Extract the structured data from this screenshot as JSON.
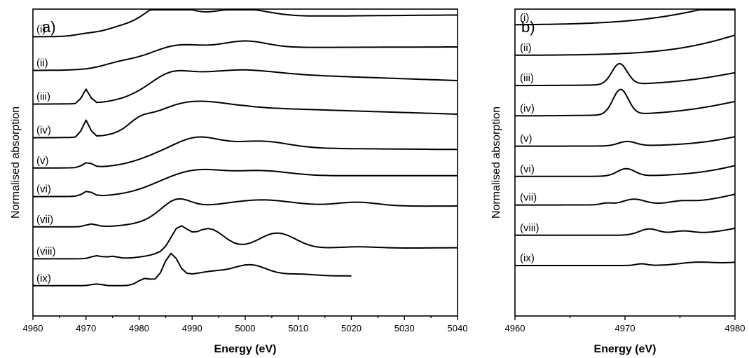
{
  "chart_data": [
    {
      "panel_label": "a)",
      "type": "line",
      "xlabel": "Energy (eV)",
      "ylabel": "Normalised absorption",
      "xlim": [
        4960,
        5040
      ],
      "xticks": [
        4960,
        4970,
        4980,
        4990,
        5000,
        5010,
        5020,
        5030,
        5040
      ],
      "legend": "inline labels at left",
      "series": [
        {
          "name": "(i)",
          "offset": 8.3,
          "peaks": [
            [
              4970,
              0.05,
              2
            ],
            [
              4976,
              0.12,
              3
            ],
            [
              4985,
              0.52,
              3.5
            ],
            [
              4999,
              0.24,
              5
            ]
          ],
          "edge": [
            4979,
            0.6,
            3.5
          ],
          "tail": 0.05,
          "xmax": 5040
        },
        {
          "name": "(ii)",
          "offset": 7.3,
          "peaks": [
            [
              4976,
              0.1,
              3
            ],
            [
              4987,
              0.15,
              4
            ],
            [
              5000,
              0.2,
              4
            ]
          ],
          "edge": [
            4980,
            0.68,
            3.5
          ],
          "tail": 0.02,
          "xmax": 5040
        },
        {
          "name": "(iii)",
          "offset": 6.3,
          "peaks": [
            [
              4970,
              0.42,
              0.7
            ],
            [
              4986,
              0.18,
              3
            ],
            [
              5000,
              0.1,
              6
            ]
          ],
          "edge": [
            4981,
            0.92,
            3
          ],
          "tail": -0.22,
          "xmax": 5040
        },
        {
          "name": "(iv)",
          "offset": 5.3,
          "peaks": [
            [
              4970,
              0.5,
              0.7
            ],
            [
              4980,
              0.2,
              2
            ],
            [
              4990,
              0.22,
              6
            ]
          ],
          "edge": [
            4981,
            0.9,
            3
          ],
          "tail": -0.2,
          "xmax": 5040
        },
        {
          "name": "(v)",
          "offset": 4.4,
          "peaks": [
            [
              4970.3,
              0.15,
              0.9
            ],
            [
              4991,
              0.33,
              4
            ],
            [
              5003,
              0.2,
              5
            ]
          ],
          "edge": [
            4981,
            0.6,
            3
          ],
          "tail": -0.05,
          "xmax": 5040
        },
        {
          "name": "(vi)",
          "offset": 3.55,
          "peaks": [
            [
              4970.3,
              0.15,
              0.9
            ],
            [
              4991,
              0.2,
              4.5
            ],
            [
              5003,
              0.15,
              5
            ]
          ],
          "edge": [
            4982,
            0.62,
            3
          ],
          "tail": 0.0,
          "xmax": 5040
        },
        {
          "name": "(vii)",
          "offset": 2.65,
          "peaks": [
            [
              4971,
              0.08,
              1
            ],
            [
              4987,
              0.32,
              2.5
            ],
            [
              5003,
              0.2,
              6
            ],
            [
              5021,
              0.12,
              4
            ]
          ],
          "edge": [
            4983,
            0.6,
            2.5
          ],
          "tail": 0.02,
          "xmax": 5040
        },
        {
          "name": "(viii)",
          "offset": 1.7,
          "peaks": [
            [
              4972,
              0.09,
              1
            ],
            [
              4975,
              0.07,
              1
            ],
            [
              4987.5,
              0.6,
              1.5
            ],
            [
              4993,
              0.62,
              3
            ],
            [
              5006,
              0.48,
              3.5
            ],
            [
              5021,
              0.05,
              4
            ]
          ],
          "edge": [
            4983,
            0.28,
            2
          ],
          "tail": 0.05,
          "xmax": 5040
        },
        {
          "name": "(ix)",
          "offset": 0.9,
          "peaks": [
            [
              4972,
              0.05,
              1
            ],
            [
              4981,
              0.18,
              1.2
            ],
            [
              4986,
              0.72,
              1.3
            ],
            [
              4994,
              0.12,
              3
            ],
            [
              5001,
              0.32,
              3
            ],
            [
              5010,
              0.05,
              3
            ]
          ],
          "edge": [
            4984,
            0.3,
            1.5
          ],
          "tail": -0.02,
          "xmax": 5020
        }
      ]
    },
    {
      "panel_label": "b)",
      "type": "line",
      "xlabel": "Energy (eV)",
      "ylabel": "Normalised absorption",
      "xlim": [
        4960,
        4980
      ],
      "xticks": [
        4960,
        4970,
        4980
      ],
      "legend": "inline labels at left",
      "series": [
        {
          "name": "(i)",
          "offset": 8.65,
          "peaks": [],
          "edge": [
            4979,
            1.25,
            4
          ],
          "tail": 0,
          "xmax": 4980
        },
        {
          "name": "(ii)",
          "offset": 7.75,
          "peaks": [],
          "edge": [
            4981,
            1.4,
            3.5
          ],
          "tail": 0,
          "xmax": 4980
        },
        {
          "name": "(iii)",
          "offset": 6.85,
          "peaks": [
            [
              4969.5,
              0.62,
              0.7
            ]
          ],
          "edge": [
            4981,
            0.9,
            3.5
          ],
          "tail": 0,
          "xmax": 4980
        },
        {
          "name": "(iv)",
          "offset": 5.95,
          "peaks": [
            [
              4969.6,
              0.75,
              0.7
            ]
          ],
          "edge": [
            4981,
            1.0,
            3.5
          ],
          "tail": 0,
          "xmax": 4980
        },
        {
          "name": "(v)",
          "offset": 5.05,
          "peaks": [
            [
              4970.2,
              0.13,
              0.8
            ]
          ],
          "edge": [
            4981,
            0.7,
            2.5
          ],
          "tail": 0,
          "xmax": 4980
        },
        {
          "name": "(vi)",
          "offset": 4.15,
          "peaks": [
            [
              4970.1,
              0.22,
              0.8
            ]
          ],
          "edge": [
            4981,
            0.8,
            2.5
          ],
          "tail": 0,
          "xmax": 4980
        },
        {
          "name": "(vii)",
          "offset": 3.3,
          "peaks": [
            [
              4968.3,
              0.05,
              0.5
            ],
            [
              4970.8,
              0.16,
              1
            ],
            [
              4975,
              0.06,
              1
            ]
          ],
          "edge": [
            4981,
            0.8,
            2.5
          ],
          "tail": 0,
          "xmax": 4980
        },
        {
          "name": "(viii)",
          "offset": 2.4,
          "peaks": [
            [
              4972.2,
              0.18,
              0.9
            ],
            [
              4975.2,
              0.1,
              1
            ]
          ],
          "edge": [
            4981,
            0.55,
            2
          ],
          "tail": 0,
          "xmax": 4980
        },
        {
          "name": "(ix)",
          "offset": 1.5,
          "peaks": [
            [
              4971.5,
              0.05,
              0.5
            ],
            [
              4976.5,
              0.08,
              1.5
            ]
          ],
          "edge": [
            4982,
            0.35,
            2
          ],
          "tail": 0,
          "xmax": 4980
        }
      ]
    }
  ]
}
